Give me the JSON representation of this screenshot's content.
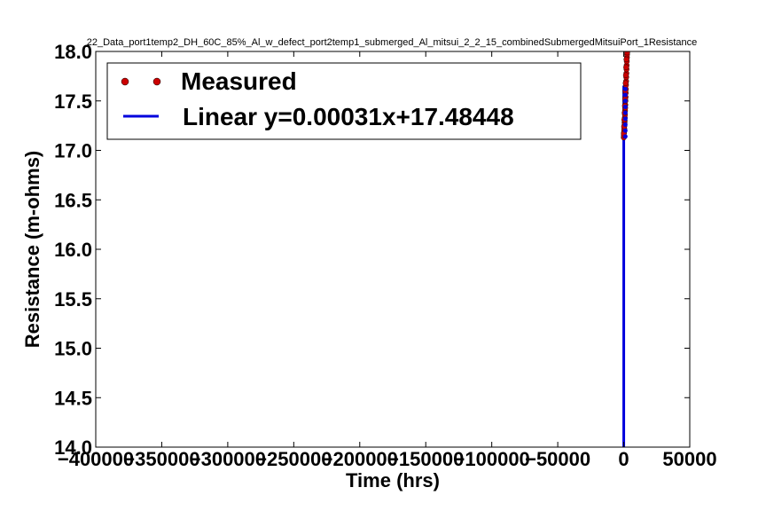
{
  "chart_data": {
    "type": "scatter",
    "title": "22_Data_port1temp2_DH_60C_85%_Al_w_defect_port2temp1_submerged_Al_mitsui_2_2_15_combinedSubmergedMitsuiPort_1Resistance",
    "xlabel": "Time (hrs)",
    "ylabel": "Resistance (m-ohms)",
    "xlim": [
      -400000,
      50000
    ],
    "ylim": [
      14.0,
      18.0
    ],
    "x_ticks": [
      -400000,
      -350000,
      -300000,
      -250000,
      -200000,
      -150000,
      -100000,
      -50000,
      0,
      50000
    ],
    "x_tick_labels": [
      "−400000",
      "−350000",
      "−300000",
      "−250000",
      "−200000",
      "−150000",
      "−100000",
      "−50000",
      "0",
      "50000"
    ],
    "y_ticks": [
      14.0,
      14.5,
      15.0,
      15.5,
      16.0,
      16.5,
      17.0,
      17.5,
      18.0
    ],
    "y_tick_labels": [
      "14.0",
      "14.5",
      "15.0",
      "15.5",
      "16.0",
      "16.5",
      "17.0",
      "17.5",
      "18.0"
    ],
    "grid": false,
    "legend": "top-left",
    "series": [
      {
        "name": "Measured",
        "kind": "scatter",
        "color": "#cc0000",
        "points": [
          {
            "x": 0,
            "y": 17.13
          },
          {
            "x": 100,
            "y": 17.15
          },
          {
            "x": 200,
            "y": 17.18
          },
          {
            "x": 300,
            "y": 17.2
          },
          {
            "x": 400,
            "y": 17.22
          },
          {
            "x": 500,
            "y": 17.25
          },
          {
            "x": 600,
            "y": 17.28
          },
          {
            "x": 700,
            "y": 17.3
          },
          {
            "x": 800,
            "y": 17.33
          },
          {
            "x": 900,
            "y": 17.36
          },
          {
            "x": 1000,
            "y": 17.4
          },
          {
            "x": 1100,
            "y": 17.43
          },
          {
            "x": 1200,
            "y": 17.46
          },
          {
            "x": 1300,
            "y": 17.5
          },
          {
            "x": 1400,
            "y": 17.54
          },
          {
            "x": 1500,
            "y": 17.58
          },
          {
            "x": 1600,
            "y": 17.62
          },
          {
            "x": 1700,
            "y": 17.66
          },
          {
            "x": 1800,
            "y": 17.7
          },
          {
            "x": 1900,
            "y": 17.74
          },
          {
            "x": 2000,
            "y": 17.78
          },
          {
            "x": 2100,
            "y": 17.82
          },
          {
            "x": 2200,
            "y": 17.86
          },
          {
            "x": 2300,
            "y": 17.9
          },
          {
            "x": 2400,
            "y": 17.94
          },
          {
            "x": 2500,
            "y": 17.97
          },
          {
            "x": 2600,
            "y": 17.99
          },
          {
            "x": 50,
            "y": 17.17
          },
          {
            "x": 250,
            "y": 17.24
          },
          {
            "x": 450,
            "y": 17.31
          },
          {
            "x": 650,
            "y": 17.38
          },
          {
            "x": 850,
            "y": 17.45
          },
          {
            "x": 1050,
            "y": 17.52
          },
          {
            "x": 1250,
            "y": 17.6
          },
          {
            "x": 1450,
            "y": 17.68
          },
          {
            "x": 1650,
            "y": 17.76
          },
          {
            "x": 1850,
            "y": 17.84
          },
          {
            "x": 2050,
            "y": 17.92
          }
        ]
      },
      {
        "name": "Linear y=0.00031x+17.48448",
        "kind": "line",
        "color": "#0000dd",
        "slope": 0.00031,
        "intercept": 17.48448
      }
    ]
  }
}
